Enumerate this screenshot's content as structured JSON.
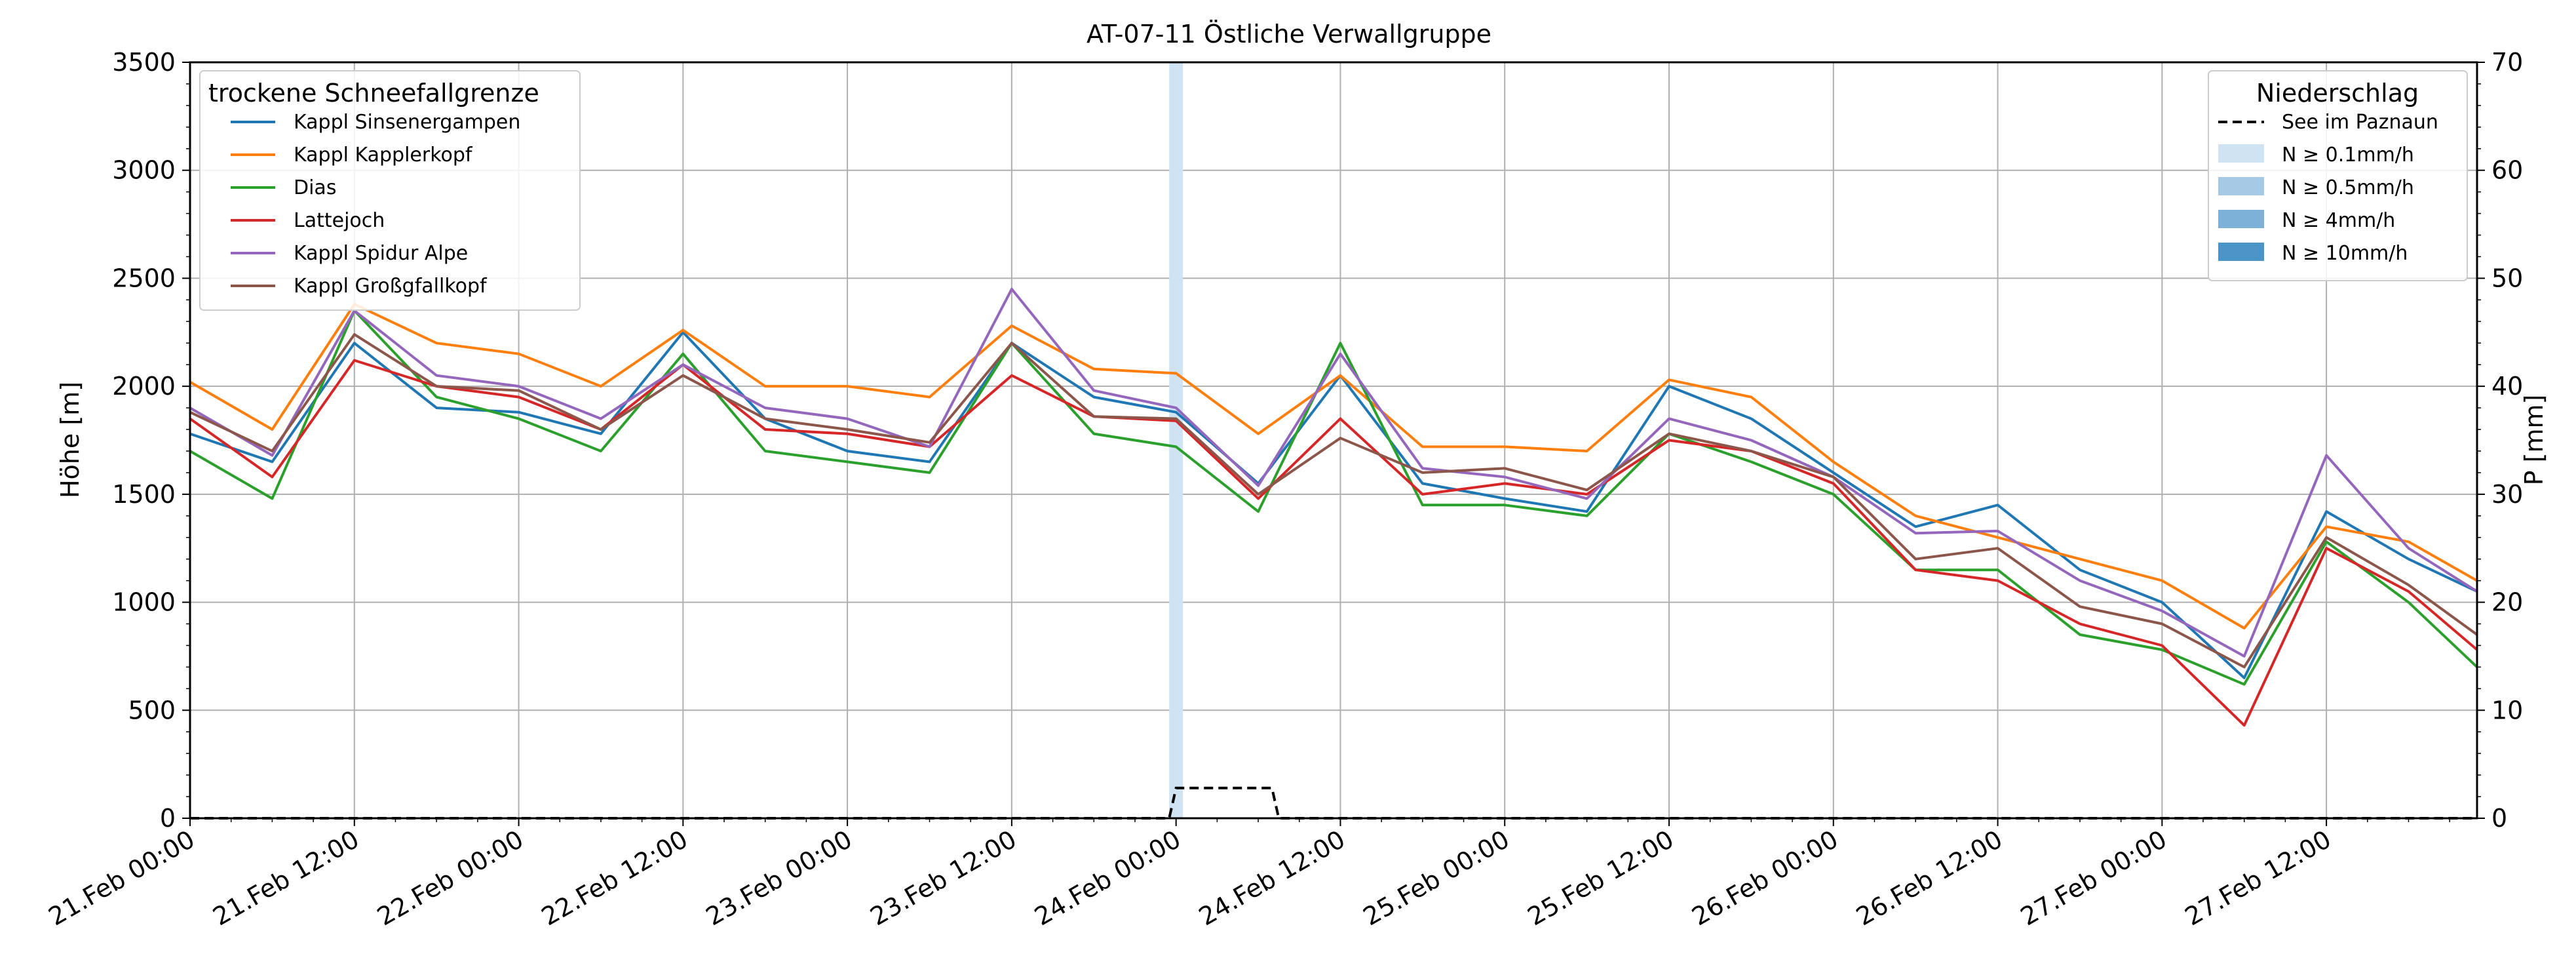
{
  "chart_data": {
    "type": "line",
    "title": "AT-07-11 Östliche Verwallgruppe",
    "ylabel_left": "Höhe [m]",
    "ylabel_right": "P [mm]",
    "y_left_range": [
      0,
      3500
    ],
    "y_right_range": [
      0,
      70
    ],
    "y_left_ticks": [
      0,
      500,
      1000,
      1500,
      2000,
      2500,
      3000,
      3500
    ],
    "y_right_ticks": [
      0,
      10,
      20,
      30,
      40,
      50,
      60,
      70
    ],
    "x_range_hours": [
      0,
      167
    ],
    "x_ticks": [
      {
        "hour": 0,
        "label": "21.Feb 00:00"
      },
      {
        "hour": 12,
        "label": "21.Feb 12:00"
      },
      {
        "hour": 24,
        "label": "22.Feb 00:00"
      },
      {
        "hour": 36,
        "label": "22.Feb 12:00"
      },
      {
        "hour": 48,
        "label": "23.Feb 00:00"
      },
      {
        "hour": 60,
        "label": "23.Feb 12:00"
      },
      {
        "hour": 72,
        "label": "24.Feb 00:00"
      },
      {
        "hour": 84,
        "label": "24.Feb 12:00"
      },
      {
        "hour": 96,
        "label": "25.Feb 00:00"
      },
      {
        "hour": 108,
        "label": "25.Feb 12:00"
      },
      {
        "hour": 120,
        "label": "26.Feb 00:00"
      },
      {
        "hour": 132,
        "label": "26.Feb 12:00"
      },
      {
        "hour": 144,
        "label": "27.Feb 00:00"
      },
      {
        "hour": 156,
        "label": "27.Feb 12:00"
      }
    ],
    "series_x_hours": [
      0,
      6,
      12,
      18,
      24,
      30,
      36,
      42,
      48,
      54,
      60,
      66,
      72,
      78,
      84,
      90,
      96,
      102,
      108,
      114,
      120,
      126,
      132,
      138,
      144,
      150,
      156,
      162,
      167
    ],
    "legend_left_title": "trockene Schneefallgrenze",
    "series": [
      {
        "name": "Kappl Sinsenergampen",
        "color": "#1f77b4",
        "values": [
          1780,
          1650,
          2200,
          1900,
          1880,
          1780,
          2250,
          1850,
          1700,
          1650,
          2200,
          1950,
          1880,
          1550,
          2050,
          1550,
          1480,
          1420,
          2000,
          1850,
          1600,
          1350,
          1450,
          1150,
          1000,
          650,
          1420,
          1200,
          1050
        ]
      },
      {
        "name": "Kappl Kapplerkopf",
        "color": "#ff7f0e",
        "values": [
          2020,
          1800,
          2380,
          2200,
          2150,
          2000,
          2260,
          2000,
          2000,
          1950,
          2280,
          2080,
          2060,
          1780,
          2050,
          1720,
          1720,
          1700,
          2030,
          1950,
          1650,
          1400,
          1300,
          1200,
          1100,
          880,
          1350,
          1280,
          1100
        ]
      },
      {
        "name": "Dias",
        "color": "#2ca02c",
        "values": [
          1700,
          1480,
          2350,
          1950,
          1850,
          1700,
          2150,
          1700,
          1650,
          1600,
          2200,
          1780,
          1720,
          1420,
          2200,
          1450,
          1450,
          1400,
          1780,
          1650,
          1500,
          1150,
          1150,
          850,
          780,
          620,
          1280,
          1000,
          700
        ]
      },
      {
        "name": "Lattejoch",
        "color": "#d62728",
        "values": [
          1850,
          1580,
          2120,
          2000,
          1950,
          1800,
          2100,
          1800,
          1780,
          1720,
          2050,
          1860,
          1840,
          1480,
          1850,
          1500,
          1550,
          1500,
          1750,
          1700,
          1550,
          1150,
          1100,
          900,
          800,
          430,
          1250,
          1050,
          780
        ]
      },
      {
        "name": "Kappl Spidur Alpe",
        "color": "#9467bd",
        "values": [
          1900,
          1680,
          2350,
          2050,
          2000,
          1850,
          2100,
          1900,
          1850,
          1720,
          2450,
          1980,
          1900,
          1540,
          2150,
          1620,
          1580,
          1480,
          1850,
          1750,
          1580,
          1320,
          1330,
          1100,
          960,
          750,
          1680,
          1250,
          1050
        ]
      },
      {
        "name": "Kappl Großgfallkopf",
        "color": "#8c564b",
        "values": [
          1880,
          1700,
          2240,
          2000,
          1980,
          1800,
          2050,
          1850,
          1800,
          1740,
          2200,
          1860,
          1850,
          1500,
          1760,
          1600,
          1620,
          1520,
          1780,
          1700,
          1580,
          1200,
          1250,
          980,
          900,
          700,
          1300,
          1080,
          850
        ]
      }
    ],
    "precip_legend_title": "Niederschlag",
    "precip_series": {
      "name": "See im Paznaun",
      "color": "#000000",
      "style": "dashed",
      "x_hours": [
        0,
        71.5,
        72,
        79,
        79.5,
        167
      ],
      "values_mm": [
        0,
        0,
        2.8,
        2.8,
        0,
        0
      ]
    },
    "precip_bands": [
      {
        "label": "N ≥ 0.1mm/h",
        "color": "#cfe3f3"
      },
      {
        "label": "N ≥ 0.5mm/h",
        "color": "#a6c9e6"
      },
      {
        "label": "N ≥ 4mm/h",
        "color": "#7eb1d8"
      },
      {
        "label": "N ≥ 10mm/h",
        "color": "#4b94c7"
      }
    ],
    "precip_highlight_hours": [
      71.5,
      72.5
    ],
    "grid": true,
    "legend_left_position": "top-left",
    "legend_right_position": "top-right"
  }
}
